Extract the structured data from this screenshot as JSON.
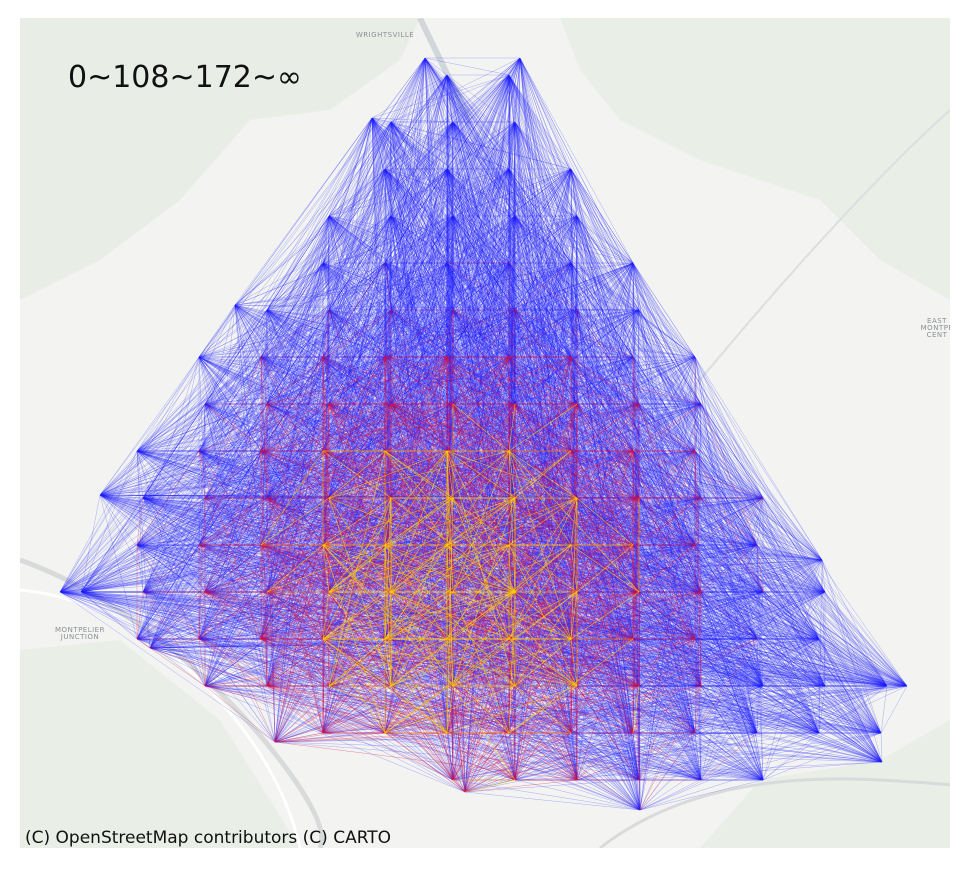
{
  "legend": "0~108~172~∞",
  "attribution": "(C) OpenStreetMap contributors (C) CARTO",
  "places": [
    "WRIGHTSVILLE",
    "EAST",
    "MONTPE",
    "CENT",
    "MONTPELIER",
    "JUNCTION"
  ]
}
